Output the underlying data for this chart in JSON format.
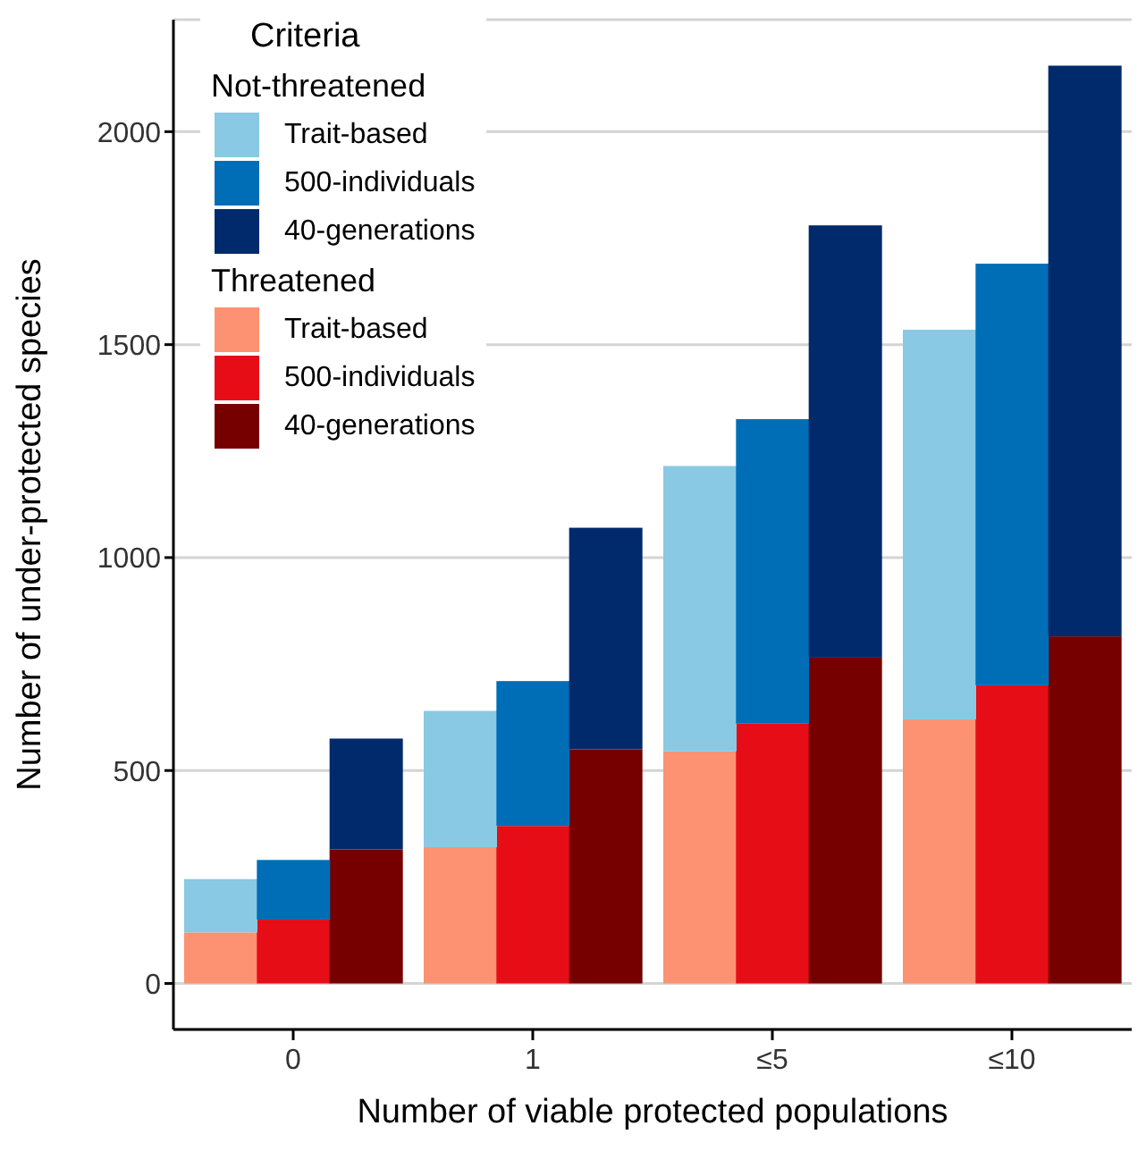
{
  "chart_data": {
    "type": "bar",
    "stacked": true,
    "xlabel": "Number of viable protected populations",
    "ylabel": "Number of under-protected species",
    "legend_title": "Criteria",
    "legend": "top left",
    "grid": "y",
    "annotations": [
      "Not-threatened",
      "Threatened"
    ],
    "categories": [
      null,
      "0",
      null,
      null,
      "1",
      null,
      null,
      "≤5",
      null,
      null,
      "≤10",
      null
    ],
    "ylim": [
      -108,
      2263
    ],
    "yticks": [
      0,
      500,
      1000,
      1500,
      2000
    ],
    "series": [
      {
        "name": "Trait-based",
        "color": "#fc9272",
        "values": [
          120,
          null,
          null,
          320,
          null,
          null,
          545,
          null,
          null,
          620,
          null,
          null
        ]
      },
      {
        "name": "500-individuals",
        "color": "#e60d17",
        "values": [
          null,
          150,
          null,
          null,
          370,
          null,
          null,
          610,
          null,
          null,
          700,
          null
        ]
      },
      {
        "name": "40-generations",
        "color": "#760000",
        "values": [
          null,
          null,
          315,
          null,
          null,
          550,
          null,
          null,
          765,
          null,
          null,
          815
        ]
      },
      {
        "name": "Trait-based",
        "color": "#89c9e3",
        "values": [
          125,
          null,
          null,
          320,
          null,
          null,
          670,
          null,
          null,
          915,
          null,
          null
        ]
      },
      {
        "name": "500-individuals",
        "color": "#006db7",
        "values": [
          null,
          140,
          null,
          null,
          340,
          null,
          null,
          715,
          null,
          null,
          990,
          null
        ]
      },
      {
        "name": "40-generations",
        "color": "#002a6b",
        "values": [
          null,
          null,
          260,
          null,
          null,
          520,
          null,
          null,
          1015,
          null,
          null,
          1340
        ]
      }
    ]
  }
}
